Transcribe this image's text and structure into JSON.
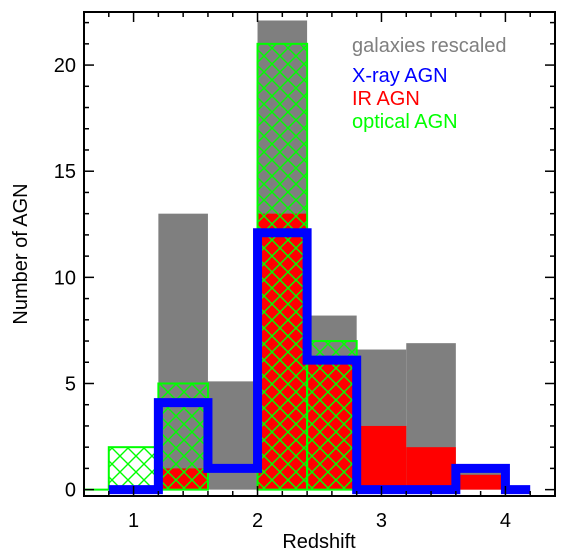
{
  "chart_data": {
    "type": "bar",
    "xlabel": "Redshift",
    "ylabel": "Number of AGN",
    "xlim": [
      0.6,
      4.4
    ],
    "ylim": [
      -0.3,
      22.5
    ],
    "bin_edges": [
      0.6,
      0.8,
      1.2,
      1.6,
      2.0,
      2.4,
      2.8,
      3.2,
      3.6,
      4.0,
      4.2
    ],
    "xticks": [
      "1",
      "2",
      "3",
      "4"
    ],
    "xtick_values": [
      1,
      2,
      3,
      4
    ],
    "yticks": [
      "0",
      "5",
      "10",
      "15",
      "20"
    ],
    "ytick_values": [
      0,
      5,
      10,
      15,
      20
    ],
    "legend_placement": "top-right",
    "colors": {
      "galaxies": "#7f7f7f",
      "xray": "#0000ff",
      "ir": "#ff0000",
      "optical": "#00ff00"
    },
    "series": [
      {
        "name": "galaxies rescaled",
        "style": "filled",
        "values": [
          0,
          0,
          13,
          5.1,
          22.1,
          8.2,
          6.6,
          6.9,
          1.2,
          0
        ]
      },
      {
        "name": "X-ray AGN",
        "style": "step",
        "values": [
          0,
          0,
          4.1,
          1.0,
          12.1,
          6.1,
          0,
          0,
          1.0,
          0
        ]
      },
      {
        "name": "IR AGN",
        "style": "filled",
        "values": [
          0,
          0,
          1.0,
          0,
          13.0,
          6.0,
          3.0,
          2.0,
          0.7,
          0
        ]
      },
      {
        "name": "optical AGN",
        "style": "crosshatch",
        "values": [
          0,
          2.0,
          5.0,
          0,
          21.0,
          7.0,
          0,
          0,
          0,
          0
        ]
      }
    ]
  }
}
